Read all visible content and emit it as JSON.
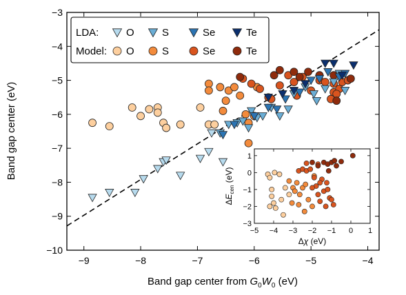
{
  "chart_data": [
    {
      "type": "scatter",
      "xlabel_prefix": "Band gap center from ",
      "xlabel_symbol_main": "G",
      "xlabel_symbol_sub": "0",
      "xlabel_symbol_main2": "W",
      "xlabel_symbol_sub2": "0",
      "xlabel_suffix": " (eV)",
      "ylabel": "Band gap center (eV)",
      "xlim": [
        -9.3,
        -3.8
      ],
      "ylim": [
        -10,
        -3
      ],
      "xticks": [
        -9,
        -8,
        -7,
        -6,
        -5,
        -4
      ],
      "yticks": [
        -10,
        -9,
        -8,
        -7,
        -6,
        -5,
        -4,
        -3
      ],
      "fit_line": {
        "style": "dashed",
        "slope": 1.05,
        "intercept": 0.48
      },
      "legend": {
        "placement": "top-left",
        "rows": [
          {
            "label": "LDA:",
            "entries": [
              {
                "text": "O",
                "marker": "triangle-down",
                "color": "#b7dbee"
              },
              {
                "text": "S",
                "marker": "triangle-down",
                "color": "#6baed6"
              },
              {
                "text": "Se",
                "marker": "triangle-down",
                "color": "#2b74b3"
              },
              {
                "text": "Te",
                "marker": "triangle-down",
                "color": "#0b2f6e"
              }
            ]
          },
          {
            "label": "Model:",
            "entries": [
              {
                "text": "O",
                "marker": "circle",
                "color": "#fdcf9e"
              },
              {
                "text": "S",
                "marker": "circle",
                "color": "#f38b3c"
              },
              {
                "text": "Se",
                "marker": "circle",
                "color": "#d9541e"
              },
              {
                "text": "Te",
                "marker": "circle",
                "color": "#8f2b0c"
              }
            ]
          }
        ]
      },
      "series": [
        {
          "group": "LDA",
          "element": "O",
          "marker": "triangle-down",
          "color": "#b7dbee",
          "points": [
            [
              -8.85,
              -8.45
            ],
            [
              -8.55,
              -8.3
            ],
            [
              -8.1,
              -8.3
            ],
            [
              -7.95,
              -7.9
            ],
            [
              -7.7,
              -7.6
            ],
            [
              -7.6,
              -7.4
            ],
            [
              -7.55,
              -7.35
            ],
            [
              -7.3,
              -7.8
            ],
            [
              -6.95,
              -7.3
            ],
            [
              -6.8,
              -7.1
            ],
            [
              -6.55,
              -7.4
            ],
            [
              -6.75,
              -6.55
            ]
          ]
        },
        {
          "group": "LDA",
          "element": "S",
          "marker": "triangle-down",
          "color": "#6baed6",
          "points": [
            [
              -6.45,
              -6.3
            ],
            [
              -6.3,
              -6.25
            ],
            [
              -6.2,
              -6.2
            ],
            [
              -6.1,
              -6.4
            ],
            [
              -6.05,
              -5.9
            ],
            [
              -5.95,
              -6.1
            ],
            [
              -5.85,
              -6.05
            ],
            [
              -5.7,
              -5.8
            ],
            [
              -5.55,
              -6.05
            ],
            [
              -5.4,
              -5.85
            ],
            [
              -5.3,
              -5.4
            ],
            [
              -5.1,
              -5.2
            ],
            [
              -4.95,
              -5.4
            ],
            [
              -4.9,
              -5.6
            ],
            [
              -4.75,
              -5.25
            ],
            [
              -4.6,
              -5.05
            ],
            [
              -4.5,
              -4.8
            ],
            [
              -4.4,
              -5.3
            ],
            [
              -6.6,
              -6.55
            ],
            [
              -6.0,
              -6.05
            ]
          ]
        },
        {
          "group": "LDA",
          "element": "Se",
          "marker": "triangle-down",
          "color": "#2b74b3",
          "points": [
            [
              -6.55,
              -6.6
            ],
            [
              -6.35,
              -6.3
            ],
            [
              -6.0,
              -6.05
            ],
            [
              -5.75,
              -5.8
            ],
            [
              -5.6,
              -5.85
            ],
            [
              -5.45,
              -5.55
            ],
            [
              -5.2,
              -5.35
            ],
            [
              -5.0,
              -5.0
            ],
            [
              -4.85,
              -4.95
            ],
            [
              -4.7,
              -4.75
            ],
            [
              -4.5,
              -4.9
            ],
            [
              -4.4,
              -4.8
            ]
          ]
        },
        {
          "group": "LDA",
          "element": "Te",
          "marker": "triangle-down",
          "color": "#0b2f6e",
          "points": [
            [
              -5.75,
              -5.5
            ],
            [
              -5.5,
              -5.4
            ],
            [
              -5.3,
              -5.3
            ],
            [
              -5.1,
              -5.1
            ],
            [
              -4.75,
              -4.5
            ],
            [
              -4.6,
              -4.5
            ],
            [
              -4.45,
              -4.85
            ],
            [
              -4.25,
              -4.55
            ]
          ]
        },
        {
          "group": "Model",
          "element": "O",
          "marker": "circle",
          "color": "#fdcf9e",
          "points": [
            [
              -8.85,
              -6.25
            ],
            [
              -8.55,
              -6.35
            ],
            [
              -8.15,
              -5.8
            ],
            [
              -8.0,
              -6.05
            ],
            [
              -7.85,
              -5.85
            ],
            [
              -7.7,
              -5.8
            ],
            [
              -7.7,
              -5.95
            ],
            [
              -7.6,
              -6.25
            ],
            [
              -7.55,
              -6.4
            ],
            [
              -7.3,
              -6.3
            ],
            [
              -6.95,
              -5.8
            ],
            [
              -6.8,
              -6.3
            ],
            [
              -6.7,
              -6.3
            ]
          ]
        },
        {
          "group": "Model",
          "element": "S",
          "marker": "circle",
          "color": "#f38b3c",
          "points": [
            [
              -6.8,
              -5.1
            ],
            [
              -6.8,
              -5.3
            ],
            [
              -6.6,
              -5.2
            ],
            [
              -6.45,
              -5.3
            ],
            [
              -6.35,
              -5.2
            ],
            [
              -6.25,
              -5.45
            ],
            [
              -6.15,
              -6.0
            ],
            [
              -6.0,
              -6.05
            ],
            [
              -6.1,
              -6.25
            ],
            [
              -5.95,
              -5.2
            ],
            [
              -6.5,
              -5.6
            ],
            [
              -6.55,
              -5.9
            ],
            [
              -6.1,
              -6.85
            ]
          ]
        },
        {
          "group": "Model",
          "element": "Se",
          "marker": "circle",
          "color": "#d9541e",
          "points": [
            [
              -6.2,
              -4.95
            ],
            [
              -6.05,
              -5.1
            ],
            [
              -5.9,
              -5.25
            ],
            [
              -5.75,
              -5.5
            ],
            [
              -5.55,
              -5.15
            ],
            [
              -5.4,
              -4.85
            ],
            [
              -5.3,
              -5.05
            ],
            [
              -5.15,
              -4.9
            ],
            [
              -5.0,
              -5.3
            ],
            [
              -4.85,
              -5.0
            ],
            [
              -4.75,
              -5.05
            ],
            [
              -4.6,
              -5.1
            ],
            [
              -4.6,
              -5.35
            ],
            [
              -4.5,
              -5.25
            ],
            [
              -4.45,
              -5.05
            ],
            [
              -4.35,
              -5.0
            ],
            [
              -5.7,
              -5.55
            ],
            [
              -5.25,
              -5.45
            ],
            [
              -4.65,
              -5.55
            ],
            [
              -4.55,
              -5.4
            ]
          ]
        },
        {
          "group": "Model",
          "element": "Te",
          "marker": "circle",
          "color": "#8f2b0c",
          "points": [
            [
              -6.25,
              -4.9
            ],
            [
              -5.65,
              -4.85
            ],
            [
              -5.55,
              -4.7
            ],
            [
              -5.3,
              -4.75
            ],
            [
              -5.05,
              -4.75
            ],
            [
              -4.85,
              -4.85
            ],
            [
              -4.6,
              -4.85
            ],
            [
              -4.55,
              -5.6
            ],
            [
              -4.3,
              -4.95
            ],
            [
              -5.2,
              -4.9
            ]
          ]
        }
      ]
    },
    {
      "type": "scatter",
      "role": "inset",
      "xlabel_prefix": "Δ",
      "xlabel_symbol": "χ",
      "xlabel_suffix": " (eV)",
      "ylabel_prefix": "Δ",
      "ylabel_symbol": "E",
      "ylabel_sub": "cen",
      "ylabel_suffix": " (eV)",
      "xlim": [
        -5,
        1
      ],
      "ylim": [
        -3,
        1.4
      ],
      "xticks": [
        -5,
        -4,
        -3,
        -2,
        -1,
        0,
        1
      ],
      "yticks": [
        -3,
        -2,
        -1,
        0,
        1
      ],
      "series": [
        {
          "element": "O",
          "color": "#fdcf9e",
          "points": [
            [
              -4.3,
              -0.1
            ],
            [
              -4.2,
              -0.3
            ],
            [
              -4.1,
              -1.0
            ],
            [
              -4.1,
              -1.4
            ],
            [
              -4.0,
              -1.8
            ],
            [
              -3.9,
              -2.1
            ],
            [
              -3.95,
              0.0
            ],
            [
              -3.7,
              -0.1
            ],
            [
              -3.6,
              -1.6
            ],
            [
              -3.4,
              -0.9
            ],
            [
              -3.2,
              -1.3
            ],
            [
              -3.5,
              -2.5
            ],
            [
              -4.2,
              -2.0
            ]
          ]
        },
        {
          "element": "S",
          "color": "#f38b3c",
          "points": [
            [
              -3.2,
              -0.5
            ],
            [
              -3.0,
              -0.9
            ],
            [
              -2.9,
              -1.1
            ],
            [
              -2.8,
              -0.6
            ],
            [
              -2.65,
              -1.3
            ],
            [
              -2.5,
              -0.9
            ],
            [
              -2.35,
              -0.7
            ],
            [
              -2.2,
              -1.6
            ],
            [
              -2.0,
              -2.0
            ],
            [
              -1.9,
              -0.2
            ],
            [
              -2.7,
              -1.9
            ],
            [
              -2.4,
              -2.3
            ],
            [
              -3.05,
              -1.8
            ]
          ]
        },
        {
          "element": "Se",
          "color": "#d9541e",
          "points": [
            [
              -2.7,
              0.1
            ],
            [
              -2.5,
              0.2
            ],
            [
              -2.3,
              0.1
            ],
            [
              -2.1,
              0.2
            ],
            [
              -1.9,
              -0.3
            ],
            [
              -1.8,
              -0.8
            ],
            [
              -1.7,
              -1.3
            ],
            [
              -1.6,
              -1.7
            ],
            [
              -1.5,
              -0.4
            ],
            [
              -1.4,
              -1.1
            ],
            [
              -1.3,
              -2.0
            ],
            [
              -1.2,
              -1.0
            ],
            [
              -1.1,
              -1.5
            ],
            [
              -1.0,
              -1.6
            ],
            [
              -1.6,
              -0.6
            ],
            [
              -1.25,
              -0.6
            ],
            [
              -2.0,
              -0.9
            ],
            [
              -0.9,
              -1.9
            ],
            [
              -2.3,
              0.55
            ],
            [
              -1.7,
              0.5
            ]
          ]
        },
        {
          "element": "Te",
          "color": "#8f2b0c",
          "points": [
            [
              -2.0,
              0.6
            ],
            [
              -1.7,
              0.4
            ],
            [
              -1.4,
              0.6
            ],
            [
              -1.2,
              0.5
            ],
            [
              -1.0,
              0.6
            ],
            [
              -0.85,
              0.7
            ],
            [
              -0.75,
              0.4
            ],
            [
              -0.5,
              0.65
            ],
            [
              0.1,
              1.0
            ],
            [
              -1.15,
              0.1
            ]
          ]
        }
      ]
    }
  ]
}
